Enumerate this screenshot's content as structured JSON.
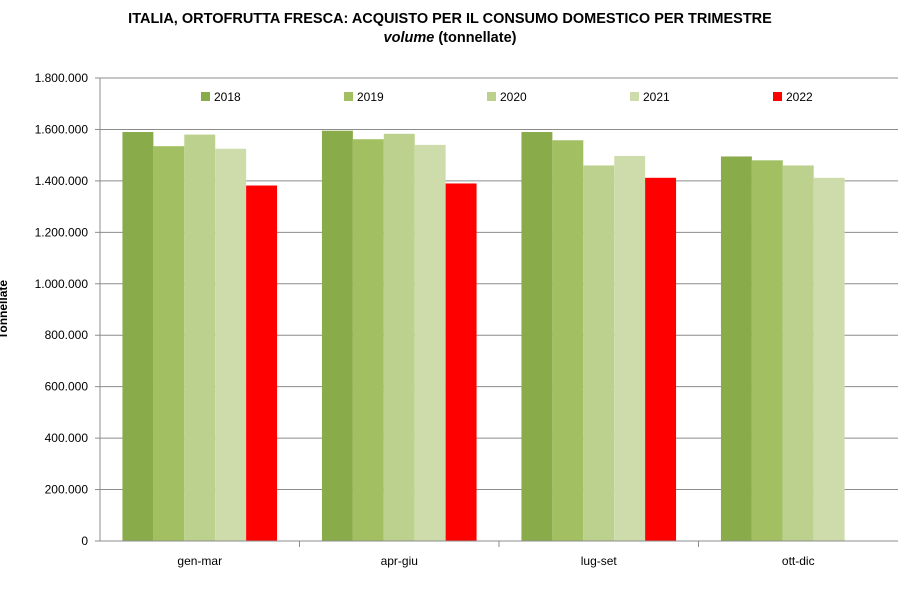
{
  "chart_data": {
    "type": "bar",
    "title": "ITALIA, ORTOFRUTTA  FRESCA: ACQUISTO PER IL CONSUMO DOMESTICO PER TRIMESTRE",
    "subtitle_italic": "volume",
    "subtitle_rest": " (tonnellate)",
    "ylabel": "Tonnellate",
    "xlabel": "",
    "categories": [
      "gen-mar",
      "apr-giu",
      "lug-set",
      "ott-dic"
    ],
    "ylim": [
      0,
      1800000
    ],
    "yticks": [
      0,
      200000,
      400000,
      600000,
      800000,
      1000000,
      1200000,
      1400000,
      1600000,
      1800000
    ],
    "ytick_labels": [
      "0",
      "200.000",
      "400.000",
      "600.000",
      "800.000",
      "1.000.000",
      "1.200.000",
      "1.400.000",
      "1.600.000",
      "1.800.000"
    ],
    "grid": "horizontal",
    "legend_position": "top",
    "series": [
      {
        "name": "2018",
        "color": "#8aab4a",
        "values": [
          1590000,
          1595000,
          1590000,
          1495000
        ]
      },
      {
        "name": "2019",
        "color": "#a2bf62",
        "values": [
          1535000,
          1562000,
          1558000,
          1480000
        ]
      },
      {
        "name": "2020",
        "color": "#bcd18d",
        "values": [
          1580000,
          1583000,
          1460000,
          1460000
        ]
      },
      {
        "name": "2021",
        "color": "#cddcaa",
        "values": [
          1525000,
          1540000,
          1497000,
          1412000
        ]
      },
      {
        "name": "2022",
        "color": "#ff0000",
        "values": [
          1382000,
          1390000,
          1412000,
          null
        ]
      }
    ]
  }
}
